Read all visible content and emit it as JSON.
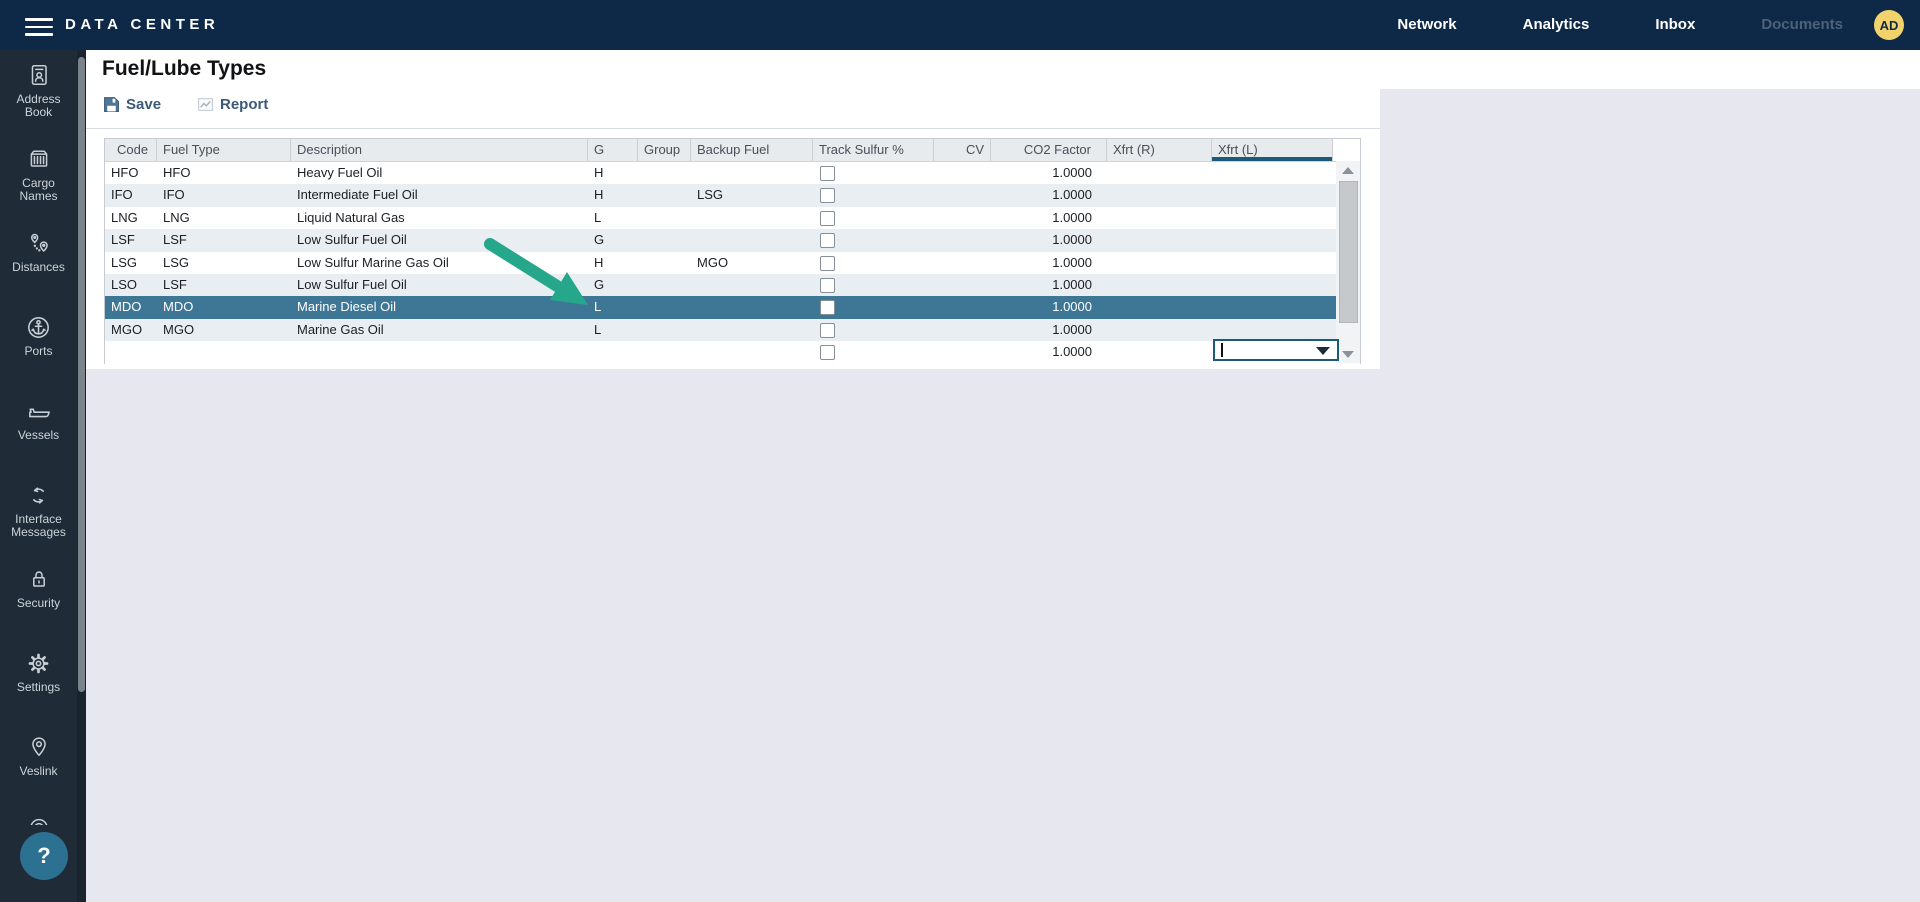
{
  "topbar": {
    "title": "DATA CENTER",
    "nav": [
      {
        "label": "Network",
        "name": "topnav-network",
        "muted": false
      },
      {
        "label": "Analytics",
        "name": "topnav-analytics",
        "muted": false
      },
      {
        "label": "Inbox",
        "name": "topnav-inbox",
        "muted": false
      },
      {
        "label": "Documents",
        "name": "topnav-documents",
        "muted": true
      }
    ],
    "avatar": "AD"
  },
  "sidebar": {
    "items": [
      {
        "name": "sidebar-item-address-book",
        "icon": "address-book",
        "label_lines": [
          "Address",
          "Book"
        ]
      },
      {
        "name": "sidebar-item-cargo-names",
        "icon": "cargo-names",
        "label_lines": [
          "Cargo",
          "Names"
        ]
      },
      {
        "name": "sidebar-item-distances",
        "icon": "distances",
        "label_lines": [
          "Distances"
        ]
      },
      {
        "name": "sidebar-item-ports",
        "icon": "ports",
        "label_lines": [
          "Ports"
        ]
      },
      {
        "name": "sidebar-item-vessels",
        "icon": "vessels",
        "label_lines": [
          "Vessels"
        ]
      },
      {
        "name": "sidebar-item-interface-messages",
        "icon": "interface-messages",
        "label_lines": [
          "Interface",
          "Messages"
        ]
      },
      {
        "name": "sidebar-item-security",
        "icon": "security",
        "label_lines": [
          "Security"
        ]
      },
      {
        "name": "sidebar-item-settings",
        "icon": "settings",
        "label_lines": [
          "Settings"
        ]
      },
      {
        "name": "sidebar-item-veslink",
        "icon": "veslink",
        "label_lines": [
          "Veslink"
        ]
      }
    ],
    "help_label": "?"
  },
  "page": {
    "title": "Fuel/Lube Types",
    "toolbar": {
      "save_label": "Save",
      "report_label": "Report"
    }
  },
  "table": {
    "columns": [
      {
        "label": "Code"
      },
      {
        "label": "Fuel Type"
      },
      {
        "label": "Description"
      },
      {
        "label": "G"
      },
      {
        "label": "Group"
      },
      {
        "label": "Backup Fuel"
      },
      {
        "label": "Track Sulfur %"
      },
      {
        "label": "CV"
      },
      {
        "label": "CO2 Factor"
      },
      {
        "label": "Xfrt (R)"
      },
      {
        "label": "Xfrt (L)",
        "active": true
      }
    ],
    "rows": [
      {
        "code": "HFO",
        "fuel_type": "HFO",
        "description": "Heavy Fuel Oil",
        "g": "H",
        "group": "",
        "backup_fuel": "",
        "track_sulfur": false,
        "cv": "",
        "co2_factor": "1.0000",
        "xfrt_r": "",
        "xfrt_l": ""
      },
      {
        "code": "IFO",
        "fuel_type": "IFO",
        "description": "Intermediate Fuel Oil",
        "g": "H",
        "group": "",
        "backup_fuel": "LSG",
        "track_sulfur": false,
        "cv": "",
        "co2_factor": "1.0000",
        "xfrt_r": "",
        "xfrt_l": ""
      },
      {
        "code": "LNG",
        "fuel_type": "LNG",
        "description": "Liquid Natural Gas",
        "g": "L",
        "group": "",
        "backup_fuel": "",
        "track_sulfur": false,
        "cv": "",
        "co2_factor": "1.0000",
        "xfrt_r": "",
        "xfrt_l": ""
      },
      {
        "code": "LSF",
        "fuel_type": "LSF",
        "description": "Low Sulfur Fuel Oil",
        "g": "G",
        "group": "",
        "backup_fuel": "",
        "track_sulfur": false,
        "cv": "",
        "co2_factor": "1.0000",
        "xfrt_r": "",
        "xfrt_l": ""
      },
      {
        "code": "LSG",
        "fuel_type": "LSG",
        "description": "Low Sulfur Marine Gas Oil",
        "g": "H",
        "group": "",
        "backup_fuel": "MGO",
        "track_sulfur": false,
        "cv": "",
        "co2_factor": "1.0000",
        "xfrt_r": "",
        "xfrt_l": ""
      },
      {
        "code": "LSO",
        "fuel_type": "LSF",
        "description": "Low Sulfur Fuel Oil",
        "g": "G",
        "group": "",
        "backup_fuel": "",
        "track_sulfur": false,
        "cv": "",
        "co2_factor": "1.0000",
        "xfrt_r": "",
        "xfrt_l": ""
      },
      {
        "code": "MDO",
        "fuel_type": "MDO",
        "description": "Marine Diesel Oil",
        "g": "L",
        "group": "",
        "backup_fuel": "",
        "track_sulfur": false,
        "cv": "",
        "co2_factor": "1.0000",
        "xfrt_r": "",
        "xfrt_l": "",
        "selected": true
      },
      {
        "code": "MGO",
        "fuel_type": "MGO",
        "description": "Marine Gas Oil",
        "g": "L",
        "group": "",
        "backup_fuel": "",
        "track_sulfur": false,
        "cv": "",
        "co2_factor": "1.0000",
        "xfrt_r": "",
        "xfrt_l": ""
      },
      {
        "code": "",
        "fuel_type": "",
        "description": "",
        "g": "",
        "group": "",
        "backup_fuel": "",
        "track_sulfur": false,
        "cv": "",
        "co2_factor": "1.0000",
        "xfrt_r": "",
        "xfrt_l": ""
      }
    ],
    "editor": {
      "column": "Xfrt (L)",
      "value": ""
    }
  },
  "annotation": {
    "arrow_color": "#26a78b"
  },
  "colors": {
    "topbar_bg": "#0e2947",
    "sidebar_bg": "#1f2b37",
    "selected_row": "#3e7796",
    "row_stripe": "#e9eef3",
    "header_bg": "#e8ebee",
    "active_column_underline": "#1d5a78",
    "avatar_bg": "#f2d36b",
    "help_button_bg": "#2c7092",
    "content_gray": "#e7e7ef"
  }
}
